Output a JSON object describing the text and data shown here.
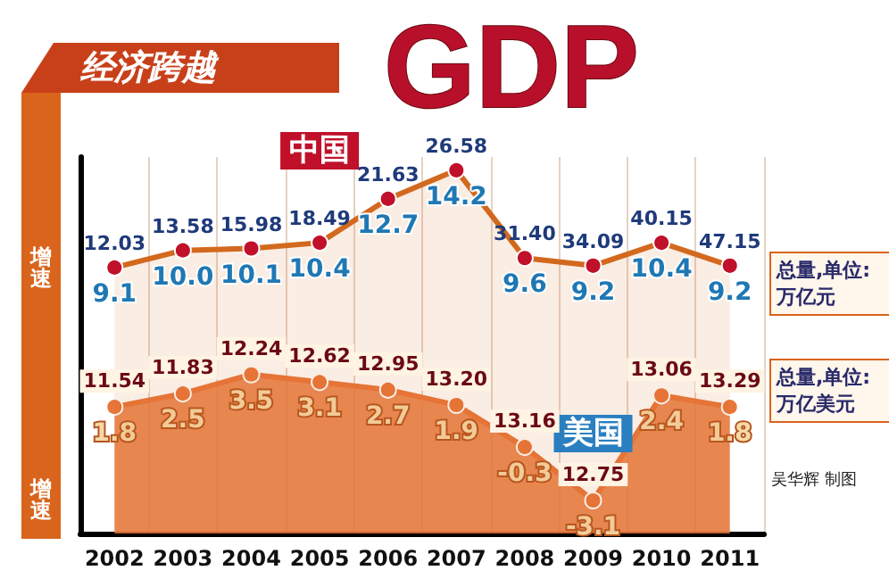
{
  "chart_data": {
    "type": "line",
    "title": "经济跨越",
    "subtitle": "GDP",
    "ylabel": "增速",
    "categories": [
      "2002",
      "2003",
      "2004",
      "2005",
      "2006",
      "2007",
      "2008",
      "2009",
      "2010",
      "2011"
    ],
    "series": [
      {
        "name": "中国",
        "color": "#d2691e",
        "values": [
          9.1,
          10.0,
          10.1,
          10.4,
          12.7,
          14.2,
          9.6,
          9.2,
          10.4,
          9.2
        ],
        "value_labels": [
          "9.1",
          "10.0",
          "10.1",
          "10.4",
          "12.7",
          "14.2",
          "9.6",
          "9.2",
          "10.4",
          "9.2"
        ]
      },
      {
        "name": "美国",
        "type": "area",
        "color": "#e8763a",
        "values": [
          1.8,
          2.5,
          3.5,
          3.1,
          2.7,
          1.9,
          -0.3,
          -3.1,
          2.4,
          1.8
        ],
        "value_labels": [
          "1.8",
          "2.5",
          "3.5",
          "3.1",
          "2.7",
          "1.9",
          "-0.3",
          "-3.1",
          "2.4",
          "1.8"
        ]
      }
    ],
    "annotations": [
      {
        "text": "12.03",
        "x": "2002",
        "y": 9.1
      },
      {
        "text": "13.58",
        "x": "2003",
        "y": 10.0
      },
      {
        "text": "15.98",
        "x": "2004",
        "y": 10.1
      },
      {
        "text": "18.49",
        "x": "2005",
        "y": 10.4
      },
      {
        "text": "21.63",
        "x": "2006",
        "y": 12.7
      },
      {
        "text": "26.58",
        "x": "2007",
        "y": 14.2
      },
      {
        "text": "31.40",
        "x": "2008",
        "y": 9.6
      },
      {
        "text": "34.09",
        "x": "2009",
        "y": 9.2
      },
      {
        "text": "40.15",
        "x": "2010",
        "y": 10.4
      },
      {
        "text": "47.15",
        "x": "2011",
        "y": 9.2
      },
      {
        "text": "11.54",
        "x": "2002",
        "y": 1.8
      },
      {
        "text": "11.83",
        "x": "2003",
        "y": 2.5
      },
      {
        "text": "12.24",
        "x": "2004",
        "y": 3.5
      },
      {
        "text": "12.62",
        "x": "2005",
        "y": 3.1
      },
      {
        "text": "12.95",
        "x": "2006",
        "y": 2.7
      },
      {
        "text": "13.20",
        "x": "2007",
        "y": 1.9
      },
      {
        "text": "13.16",
        "x": "2008",
        "y": -0.3
      },
      {
        "text": "12.75",
        "x": "2009",
        "y": -3.1
      },
      {
        "text": "13.06",
        "x": "2010",
        "y": 2.4
      },
      {
        "text": "13.29",
        "x": "2011",
        "y": 1.8
      },
      "总量,单位:万亿元",
      "总量,单位:万亿美元",
      "吴华辉 制图"
    ],
    "grid": "x",
    "legend": false,
    "marker": "circle",
    "line_style": "solid",
    "tick_labels": "x"
  }
}
